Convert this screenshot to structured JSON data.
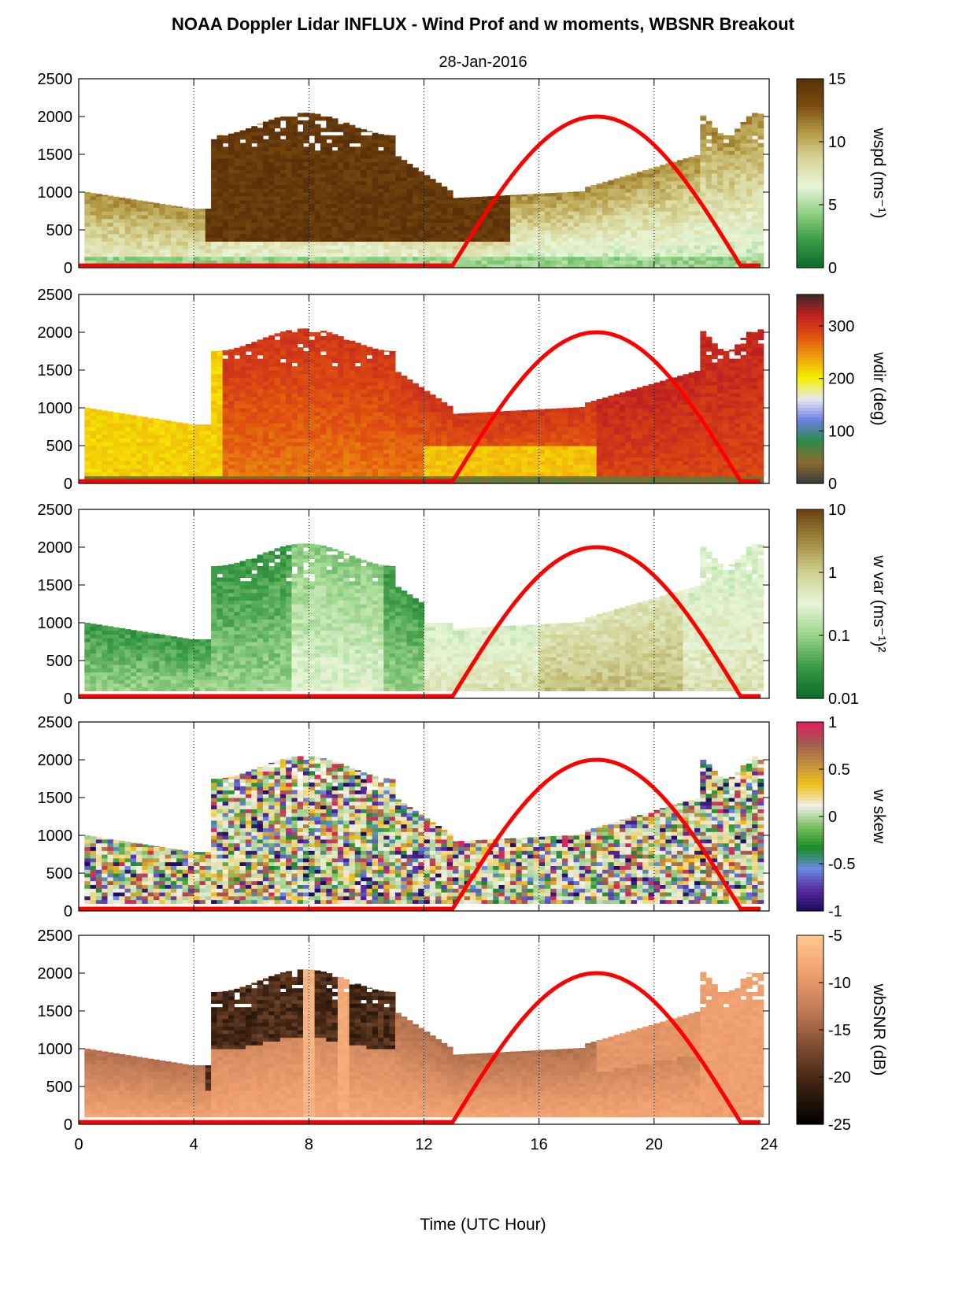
{
  "title": "NOAA Doppler Lidar INFLUX - Wind Prof and w moments, WBSNR Breakout",
  "date": "28-Jan-2016",
  "xlabel": "Time (UTC Hour)",
  "chart_data": [
    {
      "type": "heatmap",
      "colorbar_label": "wspd (ms⁻¹)",
      "colorbar_ticks": [
        "0",
        "5",
        "10",
        "15"
      ],
      "colorbar_range": [
        0,
        15
      ],
      "colorbar_colors": [
        "#0b6b2b",
        "#3a9a45",
        "#8fcf82",
        "#e8f5d8",
        "#d9d69a",
        "#b49b45",
        "#7a4a10",
        "#5a3008"
      ],
      "x_ticks": [
        "0",
        "4",
        "8",
        "12",
        "16",
        "20",
        "24"
      ],
      "y_ticks": [
        "0",
        "500",
        "1000",
        "1500",
        "2000",
        "2500"
      ],
      "xlim": [
        0,
        24
      ],
      "ylim": [
        0,
        2500
      ],
      "grid": "dotted vertical at 4-hour intervals",
      "overlay": "red curve: 0 until ~13 UTC, peaks ~2000 at ~18 UTC, returns to 0 at ~23 UTC"
    },
    {
      "type": "heatmap",
      "colorbar_label": "wdir (deg)",
      "colorbar_ticks": [
        "0",
        "100",
        "200",
        "300"
      ],
      "colorbar_range": [
        0,
        360
      ],
      "colorbar_colors": [
        "#3a3a3a",
        "#8a6a30",
        "#2e8a4a",
        "#6a7ee0",
        "#e8e8f0",
        "#f5f000",
        "#f0a010",
        "#e05010",
        "#c02020",
        "#3a2a2a"
      ],
      "x_ticks": [
        "0",
        "4",
        "8",
        "12",
        "16",
        "20",
        "24"
      ],
      "y_ticks": [
        "0",
        "500",
        "1000",
        "1500",
        "2000",
        "2500"
      ],
      "xlim": [
        0,
        24
      ],
      "ylim": [
        0,
        2500
      ]
    },
    {
      "type": "heatmap",
      "colorbar_label": "w var (ms⁻¹)²",
      "colorbar_ticks": [
        "0.01",
        "0.1",
        "1",
        "10"
      ],
      "colorbar_scale": "log",
      "colorbar_range": [
        0.01,
        10
      ],
      "colorbar_colors": [
        "#0b6b2b",
        "#3a9a45",
        "#9ad48a",
        "#e8f5d8",
        "#cfcf90",
        "#a08a40",
        "#6a4010"
      ],
      "x_ticks": [
        "0",
        "4",
        "8",
        "12",
        "16",
        "20",
        "24"
      ],
      "y_ticks": [
        "0",
        "500",
        "1000",
        "1500",
        "2000",
        "2500"
      ],
      "xlim": [
        0,
        24
      ],
      "ylim": [
        0,
        2500
      ]
    },
    {
      "type": "heatmap",
      "colorbar_label": "w skew",
      "colorbar_ticks": [
        "-1",
        "-0.5",
        "0",
        "0.5",
        "1"
      ],
      "colorbar_range": [
        -1,
        1
      ],
      "colorbar_colors": [
        "#1a0a5a",
        "#5a2aa0",
        "#6a8ae0",
        "#1a8a2a",
        "#7ac060",
        "#f0f0e8",
        "#f0c020",
        "#c09040",
        "#a05a50",
        "#e02060"
      ],
      "x_ticks": [
        "0",
        "4",
        "8",
        "12",
        "16",
        "20",
        "24"
      ],
      "y_ticks": [
        "0",
        "500",
        "1000",
        "1500",
        "2000",
        "2500"
      ],
      "xlim": [
        0,
        24
      ],
      "ylim": [
        0,
        2500
      ]
    },
    {
      "type": "heatmap",
      "colorbar_label": "wbSNR (dB)",
      "colorbar_ticks": [
        "-25",
        "-20",
        "-15",
        "-10",
        "-5"
      ],
      "colorbar_range": [
        -25,
        -5
      ],
      "colorbar_colors": [
        "#000000",
        "#3a2010",
        "#7a4a30",
        "#c07a55",
        "#f0a070",
        "#ffc890"
      ],
      "x_ticks": [
        "0",
        "4",
        "8",
        "12",
        "16",
        "20",
        "24"
      ],
      "y_ticks": [
        "0",
        "500",
        "1000",
        "1500",
        "2000",
        "2500"
      ],
      "xlim": [
        0,
        24
      ],
      "ylim": [
        0,
        2500
      ]
    }
  ]
}
